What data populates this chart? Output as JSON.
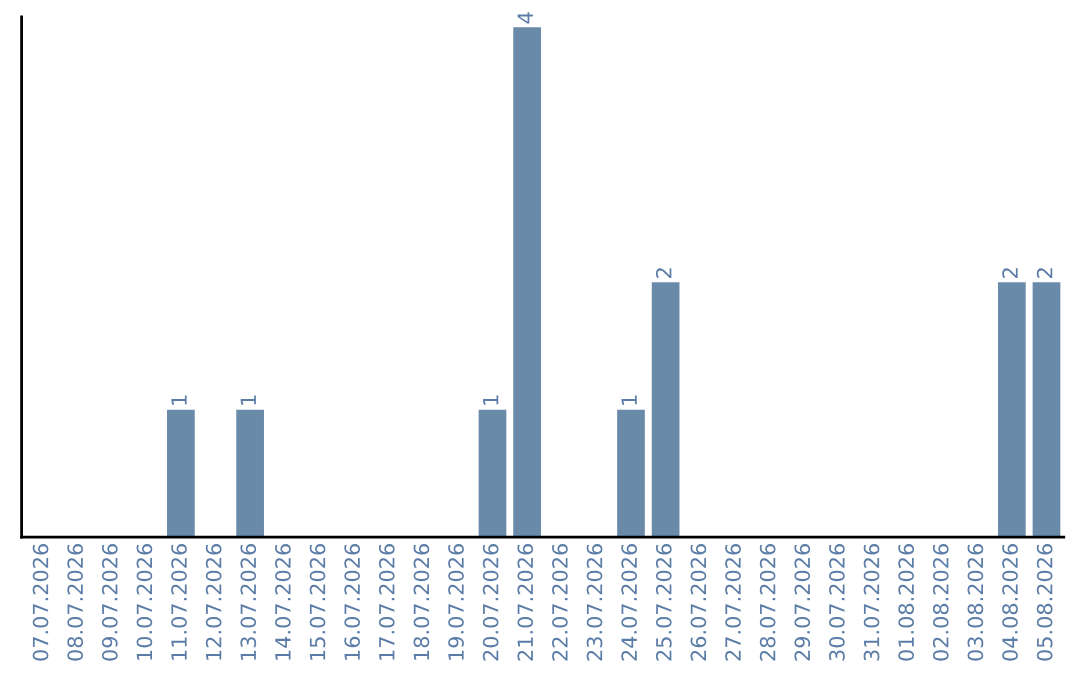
{
  "chart_data": {
    "type": "bar",
    "categories": [
      "07.07.2026",
      "08.07.2026",
      "09.07.2026",
      "10.07.2026",
      "11.07.2026",
      "12.07.2026",
      "13.07.2026",
      "14.07.2026",
      "15.07.2026",
      "16.07.2026",
      "17.07.2026",
      "18.07.2026",
      "19.07.2026",
      "20.07.2026",
      "21.07.2026",
      "22.07.2026",
      "23.07.2026",
      "24.07.2026",
      "25.07.2026",
      "26.07.2026",
      "27.07.2026",
      "28.07.2026",
      "29.07.2026",
      "30.07.2026",
      "31.07.2026",
      "01.08.2026",
      "02.08.2026",
      "03.08.2026",
      "04.08.2026",
      "05.08.2026"
    ],
    "values": [
      0,
      0,
      0,
      0,
      1,
      0,
      1,
      0,
      0,
      0,
      0,
      0,
      0,
      1,
      4,
      0,
      0,
      1,
      2,
      0,
      0,
      0,
      0,
      0,
      0,
      0,
      0,
      0,
      2,
      2
    ],
    "value_labels": [
      null,
      null,
      null,
      null,
      "1",
      null,
      "1",
      null,
      null,
      null,
      null,
      null,
      null,
      "1",
      "4",
      null,
      null,
      "1",
      "2",
      null,
      null,
      null,
      null,
      null,
      null,
      null,
      null,
      null,
      "2",
      "2"
    ],
    "color": "#6a8aaa",
    "tick_labels": "x",
    "grid": false,
    "legend": false
  }
}
